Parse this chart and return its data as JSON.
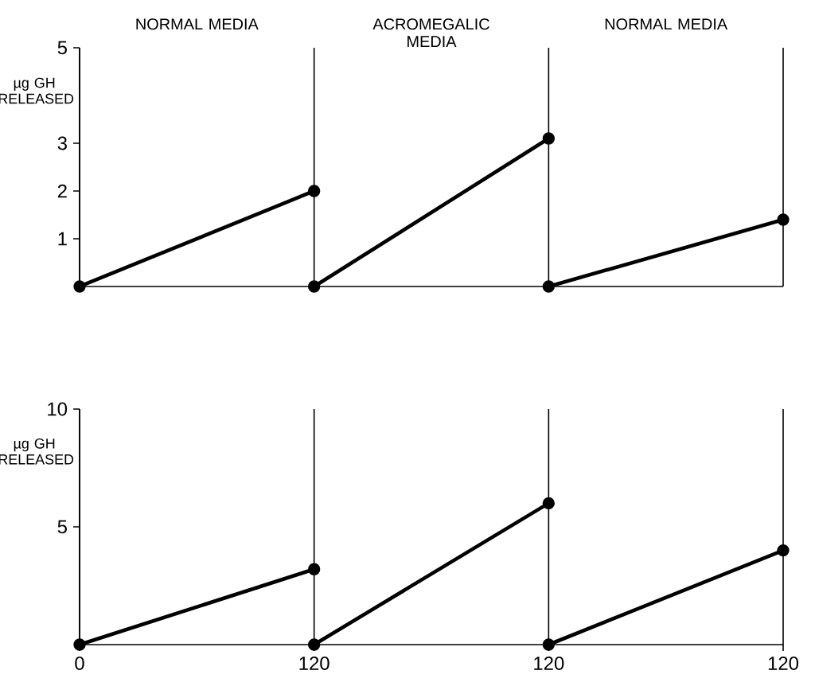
{
  "chart_data": [
    {
      "type": "line",
      "annotations": [
        "NORMAL MEDIA",
        "ACROMEGALIC MEDIA",
        "NORMAL MEDIA"
      ],
      "categories": [
        "0",
        "120",
        "120",
        "120"
      ],
      "ylim": [
        0,
        5
      ],
      "yticks": [
        1,
        2,
        3,
        5
      ],
      "tick_labels": "y",
      "grid": "x",
      "ylabel": "µg GH RELEASED",
      "marker": "circle",
      "line_style": "solid",
      "series": [
        {
          "color": "#000000",
          "values": [
            0,
            2.0,
            null,
            null
          ]
        },
        {
          "color": "#000000",
          "values": [
            null,
            0,
            3.1,
            null
          ]
        },
        {
          "color": "#000000",
          "values": [
            null,
            null,
            0,
            1.4
          ]
        }
      ]
    },
    {
      "type": "line",
      "categories": [
        "0",
        "120",
        "120",
        "120"
      ],
      "ylim": [
        0,
        10
      ],
      "yticks": [
        5,
        10
      ],
      "grid": "x",
      "ylabel": "µg GH RELEASED",
      "marker": "circle",
      "line_style": "solid",
      "series": [
        {
          "color": "#000000",
          "values": [
            0,
            3.2,
            null,
            null
          ]
        },
        {
          "color": "#000000",
          "values": [
            null,
            0,
            6.0,
            null
          ]
        },
        {
          "color": "#000000",
          "values": [
            null,
            null,
            0,
            4.0
          ]
        }
      ]
    }
  ]
}
